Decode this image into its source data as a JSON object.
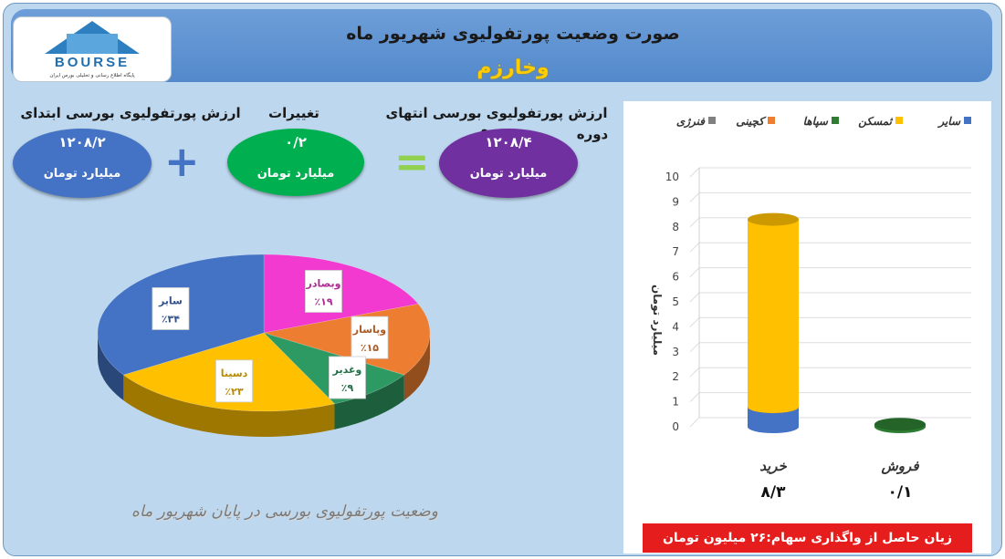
{
  "header": {
    "title": "صورت وضعیت پورتفولیوی شهریور ماه",
    "subtitle": "وخارزم",
    "logo_text": "BOURSE",
    "logo_tagline": "پایگاه اطلاع رسانی و تحلیلی بورس ایران"
  },
  "summary": {
    "initial": {
      "label": "ارزش پورتفولیوی بورسی ابتدای",
      "value": "۱۲۰۸/۲",
      "unit": "میلیارد تومان",
      "color": "#4472c4"
    },
    "change": {
      "label": "تغییرات",
      "value": "۰/۲",
      "unit": "میلیارد تومان",
      "color": "#00b050"
    },
    "final": {
      "label": "ارزش پورتفولیوی بورسی انتهای دوره",
      "label_wrap": "دوره",
      "value": "۱۲۰۸/۴",
      "unit": "میلیارد تومان",
      "color": "#7030a0"
    },
    "plus_symbol": "+",
    "equals_symbol": "="
  },
  "pie_caption": "وضعیت پورتفولیوی بورسی در پایان شهریور ماه",
  "loss_banner": "زیان حاصل از واگذاری سهام:۲۶ میلیون تومان",
  "chart_data": [
    {
      "type": "pie",
      "title": "",
      "slices": [
        {
          "label": "وبصادر",
          "value": 19,
          "value_label": "٪۱۹",
          "color": "#f23ad1"
        },
        {
          "label": "وپاسار",
          "value": 15,
          "value_label": "٪۱۵",
          "color": "#ed7d31"
        },
        {
          "label": "وغدیر",
          "value": 9,
          "value_label": "٪۹",
          "color": "#2e9a63"
        },
        {
          "label": "دسینا",
          "value": 23,
          "value_label": "٪۲۳",
          "color": "#ffc000"
        },
        {
          "label": "سایر",
          "value": 34,
          "value_label": "٪۳۴",
          "color": "#4472c4"
        }
      ]
    },
    {
      "type": "bar",
      "title": "",
      "categories": [
        "خرید",
        "فروش"
      ],
      "category_values": [
        "۸/۳",
        "۰/۱"
      ],
      "ylabel": "میلیارد تومان",
      "ylim": [
        0,
        10
      ],
      "yticks": [
        0,
        1,
        2,
        3,
        4,
        5,
        6,
        7,
        8,
        9,
        10
      ],
      "grid": true,
      "legend": "top",
      "series": [
        {
          "name": "سایر",
          "color": "#4472c4",
          "values": [
            0.8,
            0
          ]
        },
        {
          "name": "ثمسکن",
          "color": "#ffc000",
          "values": [
            7.5,
            0
          ]
        },
        {
          "name": "سپاها",
          "color": "#2e7d32",
          "values": [
            0,
            0.1
          ]
        },
        {
          "name": "کچینی",
          "color": "#ed7d31",
          "values": [
            0,
            0
          ]
        },
        {
          "name": "فنرژی",
          "color": "#808080",
          "values": [
            0,
            0
          ]
        }
      ]
    }
  ]
}
